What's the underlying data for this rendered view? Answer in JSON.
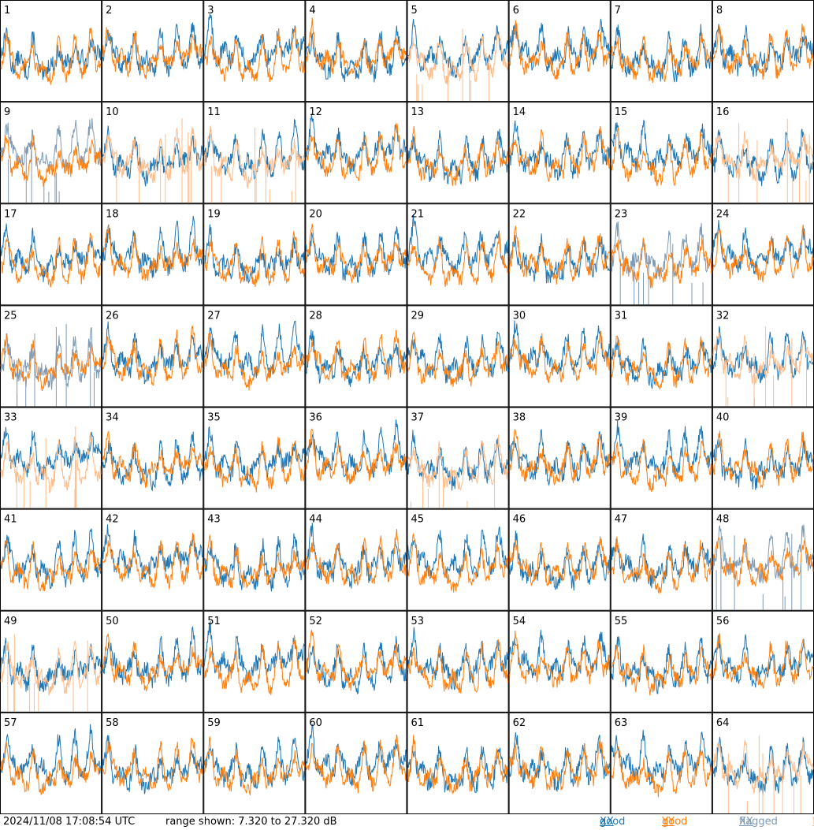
{
  "chart_data": {
    "type": "line",
    "grid": {
      "rows": 8,
      "cols": 8
    },
    "panel_labels": [
      "1",
      "2",
      "3",
      "4",
      "5",
      "6",
      "7",
      "8",
      "9",
      "10",
      "11",
      "12",
      "13",
      "14",
      "15",
      "16",
      "17",
      "18",
      "19",
      "20",
      "21",
      "22",
      "23",
      "24",
      "25",
      "26",
      "27",
      "28",
      "29",
      "30",
      "31",
      "32",
      "33",
      "34",
      "35",
      "36",
      "37",
      "38",
      "39",
      "40",
      "41",
      "42",
      "43",
      "44",
      "45",
      "46",
      "47",
      "48",
      "49",
      "50",
      "51",
      "52",
      "53",
      "54",
      "55",
      "56",
      "57",
      "58",
      "59",
      "60",
      "61",
      "62",
      "63",
      "64"
    ],
    "ylim": [
      7.32,
      27.32
    ],
    "unit": "dB",
    "series": [
      {
        "name": "good XX",
        "color": "#1f77b4"
      },
      {
        "name": "good YY",
        "color": "#ff7f0e"
      },
      {
        "name": "flagged XX",
        "color": "#7f9ab5"
      },
      {
        "name": "flagged YY",
        "color": "#ffbb88"
      }
    ],
    "panels_xx_flagged": [
      "9",
      "23",
      "25",
      "48"
    ],
    "panels_yy_flagged": [
      "5",
      "10",
      "11",
      "16",
      "32",
      "33",
      "37",
      "49",
      "64"
    ]
  },
  "footer": {
    "timestamp": "2024/11/08 17:08:54 UTC",
    "range": "range shown: 7.320 to 27.320 dB",
    "legend": [
      {
        "word": "good",
        "pol": "XX",
        "color": "#1f77b4"
      },
      {
        "word": "good",
        "pol": "YY",
        "color": "#ff7f0e"
      },
      {
        "word": "flagged",
        "pol": "XX",
        "color": "#7f9ab5"
      },
      {
        "word": "flagged",
        "pol": "YY",
        "color": "#ffbb88"
      }
    ]
  }
}
